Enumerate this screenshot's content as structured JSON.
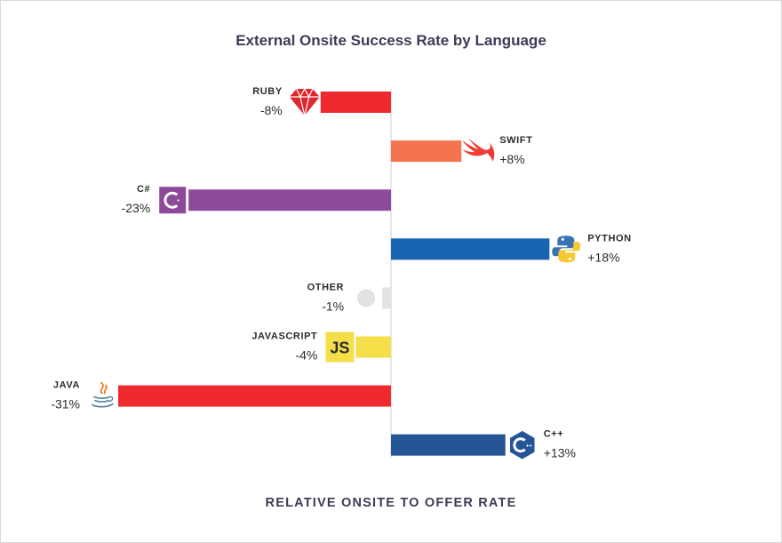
{
  "chart_data": {
    "type": "bar",
    "orientation": "horizontal-diverging",
    "title": "External Onsite Success Rate by Language",
    "xlabel": "RELATIVE ONSITE TO OFFER RATE",
    "categories": [
      "RUBY",
      "SWIFT",
      "C#",
      "PYTHON",
      "OTHER",
      "JAVASCRIPT",
      "JAVA",
      "C++"
    ],
    "values": [
      -8,
      8,
      -23,
      18,
      -1,
      -4,
      -31,
      13
    ],
    "value_labels": [
      "-8%",
      "+8%",
      "-23%",
      "+18%",
      "-1%",
      "-4%",
      "-31%",
      "+13%"
    ],
    "colors": [
      "#ee2a2f",
      "#f5734f",
      "#8d4a9a",
      "#1764b1",
      "#e2e2e2",
      "#f4df4b",
      "#ee2a2f",
      "#245595"
    ],
    "icons": [
      "ruby-icon",
      "swift-icon",
      "csharp-icon",
      "python-icon",
      "other-circle-icon",
      "javascript-icon",
      "java-icon",
      "cpp-icon"
    ],
    "icon_text": [
      "",
      "",
      "",
      "",
      "",
      "JS",
      "",
      ""
    ],
    "grid": false,
    "legend": "none"
  }
}
